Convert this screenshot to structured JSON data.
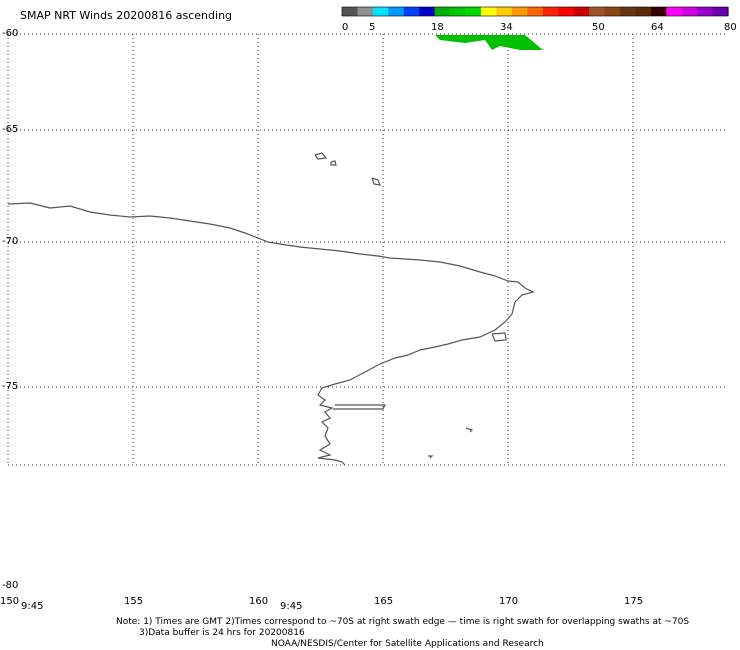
{
  "title": "SMAP NRT Winds 20200816 ascending",
  "colorbar": {
    "labels": [
      "0",
      "5",
      "18",
      "34",
      "50",
      "64",
      "80"
    ],
    "colors": [
      "#555555",
      "#8f8f8f",
      "#00e0ff",
      "#0099ff",
      "#0040ff",
      "#0000cc",
      "#00b000",
      "#00c800",
      "#00d800",
      "#ffff00",
      "#ffcc00",
      "#ff9900",
      "#ff6600",
      "#ff2200",
      "#ff0000",
      "#cc0000",
      "#a0522d",
      "#8b4513",
      "#6b3410",
      "#5a2a0a",
      "#330000",
      "#ff00ff",
      "#d000e0",
      "#9900cc",
      "#6600aa"
    ]
  },
  "lat_labels": [
    "-60",
    "-65",
    "-70",
    "-75",
    "-80"
  ],
  "lon_labels": [
    "150",
    "155",
    "160",
    "165",
    "170",
    "175"
  ],
  "time_labels": [
    "9:45",
    "9:45"
  ],
  "note": {
    "line1": "Note: 1) Times are GMT 2)Times correspond to ~70S at right swath edge — time is right swath for overlapping swaths at ~70S",
    "line2": "3)Data buffer is 24 hrs for 20200816",
    "line3": "NOAA/NESDIS/Center for Satellite Applications and Research"
  },
  "swath_color": "#00c000",
  "coast_color": "#555555"
}
